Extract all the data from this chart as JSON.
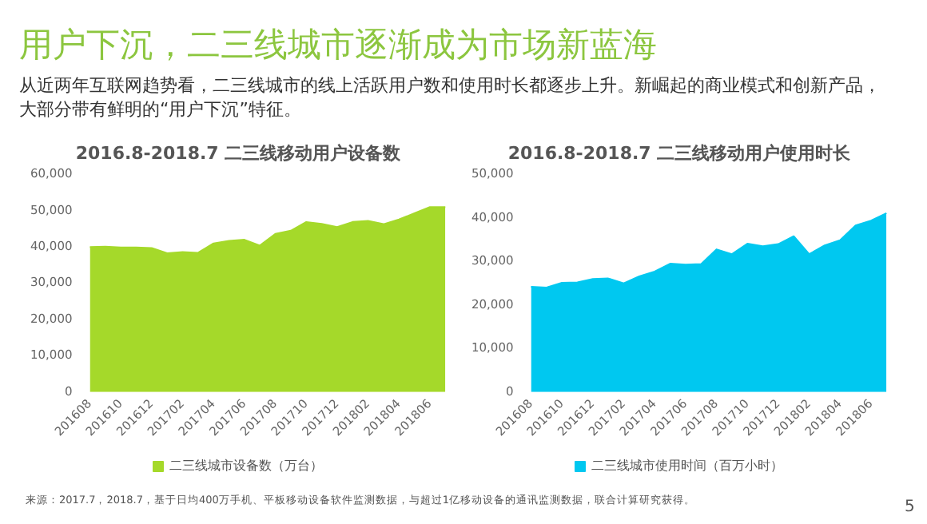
{
  "chart_data": [
    {
      "type": "other",
      "title": "用户下沉，二三线城市逐渐成为市场新蓝海",
      "subtitle": "从近两年互联网趋势看，二三线城市的线上活跃用户数和使用时长都逐步上升。新崛起的商业模式和创新产品，大部分带有鲜明的“用户下沉”特征。",
      "annotations": [
        "来源：2017.7，2018.7，基于日均400万手机、平板移动设备软件监测数据，与超过1亿移动设备的通讯监测数据，联合计算研究获得。",
        "5"
      ]
    },
    {
      "type": "area",
      "title": "2016.8-2018.7 二三线移动用户设备数",
      "categories": [
        "201608",
        null,
        "201610",
        null,
        "201612",
        null,
        "201702",
        null,
        "201704",
        null,
        "201706",
        null,
        "201708",
        null,
        "201710",
        null,
        "201712",
        null,
        "201802",
        null,
        "201804",
        null,
        "201806",
        null
      ],
      "series": [
        {
          "name": "二三线城市设备数（万台）",
          "color": "#a5d92a",
          "values": [
            40000,
            40100,
            39900,
            39900,
            39700,
            38300,
            38600,
            38400,
            41000,
            41700,
            42000,
            40400,
            43600,
            44500,
            46900,
            46400,
            45500,
            46900,
            47200,
            46300,
            47600,
            49300,
            51000,
            51000
          ]
        }
      ],
      "ylim": [
        0,
        60000
      ],
      "yticks": [
        {
          "value": 0,
          "label": "0"
        },
        {
          "value": 10000,
          "label": "10,000"
        },
        {
          "value": 20000,
          "label": "20,000"
        },
        {
          "value": 30000,
          "label": "30,000"
        },
        {
          "value": 40000,
          "label": "40,000"
        },
        {
          "value": 50000,
          "label": "50,000"
        },
        {
          "value": 60000,
          "label": "60,000"
        }
      ],
      "grid": false,
      "legend": "bottom"
    },
    {
      "type": "area",
      "title": "2016.8-2018.7 二三线移动用户使用时长",
      "categories": [
        "201608",
        null,
        "201610",
        null,
        "201612",
        null,
        "201702",
        null,
        "201704",
        null,
        "201706",
        null,
        "201708",
        null,
        "201710",
        null,
        "201712",
        null,
        "201802",
        null,
        "201804",
        null,
        "201806",
        null
      ],
      "series": [
        {
          "name": "二三线城市使用时间（百万小时）",
          "color": "#00c8f0",
          "values": [
            24200,
            24000,
            25100,
            25200,
            26000,
            26100,
            25000,
            26600,
            27700,
            29500,
            29300,
            29400,
            32800,
            31700,
            34100,
            33500,
            34000,
            35800,
            31700,
            33700,
            34900,
            38300,
            39400,
            41100
          ]
        }
      ],
      "ylim": [
        0,
        50000
      ],
      "yticks": [
        {
          "value": 0,
          "label": "0"
        },
        {
          "value": 10000,
          "label": "10,000"
        },
        {
          "value": 20000,
          "label": "20,000"
        },
        {
          "value": 30000,
          "label": "30,000"
        },
        {
          "value": 40000,
          "label": "40,000"
        },
        {
          "value": 50000,
          "label": "50,000"
        }
      ],
      "grid": false,
      "legend": "bottom"
    }
  ]
}
